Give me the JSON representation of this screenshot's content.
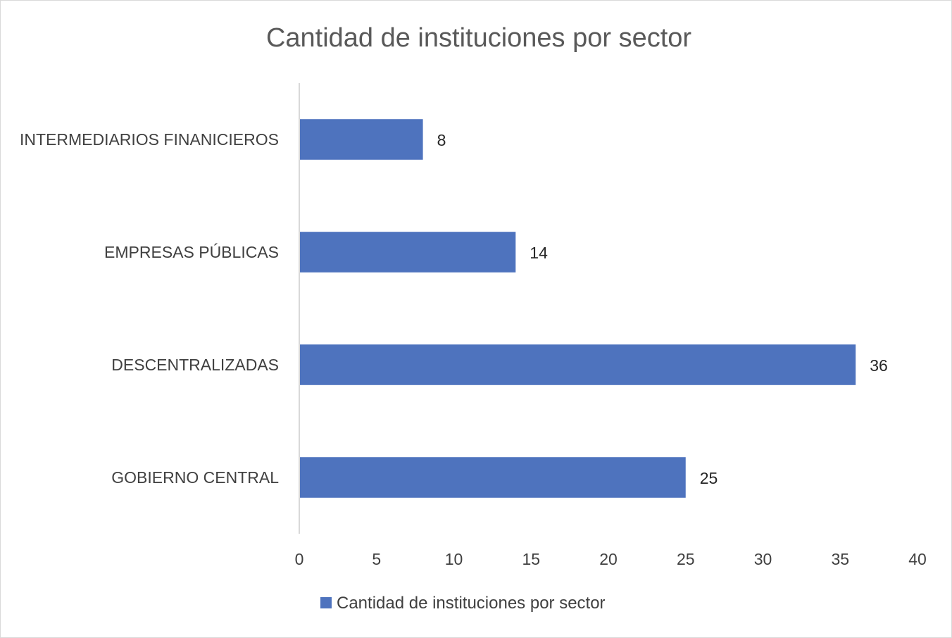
{
  "chart_data": {
    "type": "bar",
    "orientation": "horizontal",
    "title": "Cantidad de instituciones por sector",
    "categories": [
      "INTERMEDIARIOS FINANICIEROS",
      "EMPRESAS PÚBLICAS",
      "DESCENTRALIZADAS",
      "GOBIERNO CENTRAL"
    ],
    "series": [
      {
        "name": "Cantidad de instituciones por sector",
        "values": [
          8,
          14,
          36,
          25
        ],
        "color": "#4e73be"
      }
    ],
    "xlim": [
      0,
      40
    ],
    "x_ticks": [
      0,
      5,
      10,
      15,
      20,
      25,
      30,
      35,
      40
    ],
    "grid": false,
    "data_labels": true,
    "legend": "bottom"
  }
}
